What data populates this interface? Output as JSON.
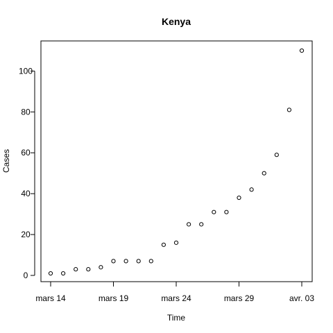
{
  "chart_data": {
    "type": "scatter",
    "title": "Kenya",
    "xlabel": "Time",
    "ylabel": "Cases",
    "x_tick_labels": [
      "mars 14",
      "mars 19",
      "mars 24",
      "mars 29",
      "avr. 03"
    ],
    "y_tick_labels": [
      "0",
      "20",
      "40",
      "60",
      "80",
      "100"
    ],
    "xlim": [
      "2020-03-13",
      "2020-04-03"
    ],
    "ylim": [
      0,
      110
    ],
    "grid": false,
    "marker": "open-circle",
    "x": [
      "2020-03-14",
      "2020-03-15",
      "2020-03-16",
      "2020-03-17",
      "2020-03-18",
      "2020-03-19",
      "2020-03-20",
      "2020-03-21",
      "2020-03-22",
      "2020-03-23",
      "2020-03-24",
      "2020-03-25",
      "2020-03-26",
      "2020-03-27",
      "2020-03-28",
      "2020-03-29",
      "2020-03-30",
      "2020-03-31",
      "2020-04-01",
      "2020-04-02",
      "2020-04-03"
    ],
    "y": [
      1,
      1,
      3,
      3,
      4,
      7,
      7,
      7,
      7,
      15,
      16,
      25,
      25,
      31,
      31,
      38,
      42,
      50,
      59,
      81,
      110
    ]
  }
}
